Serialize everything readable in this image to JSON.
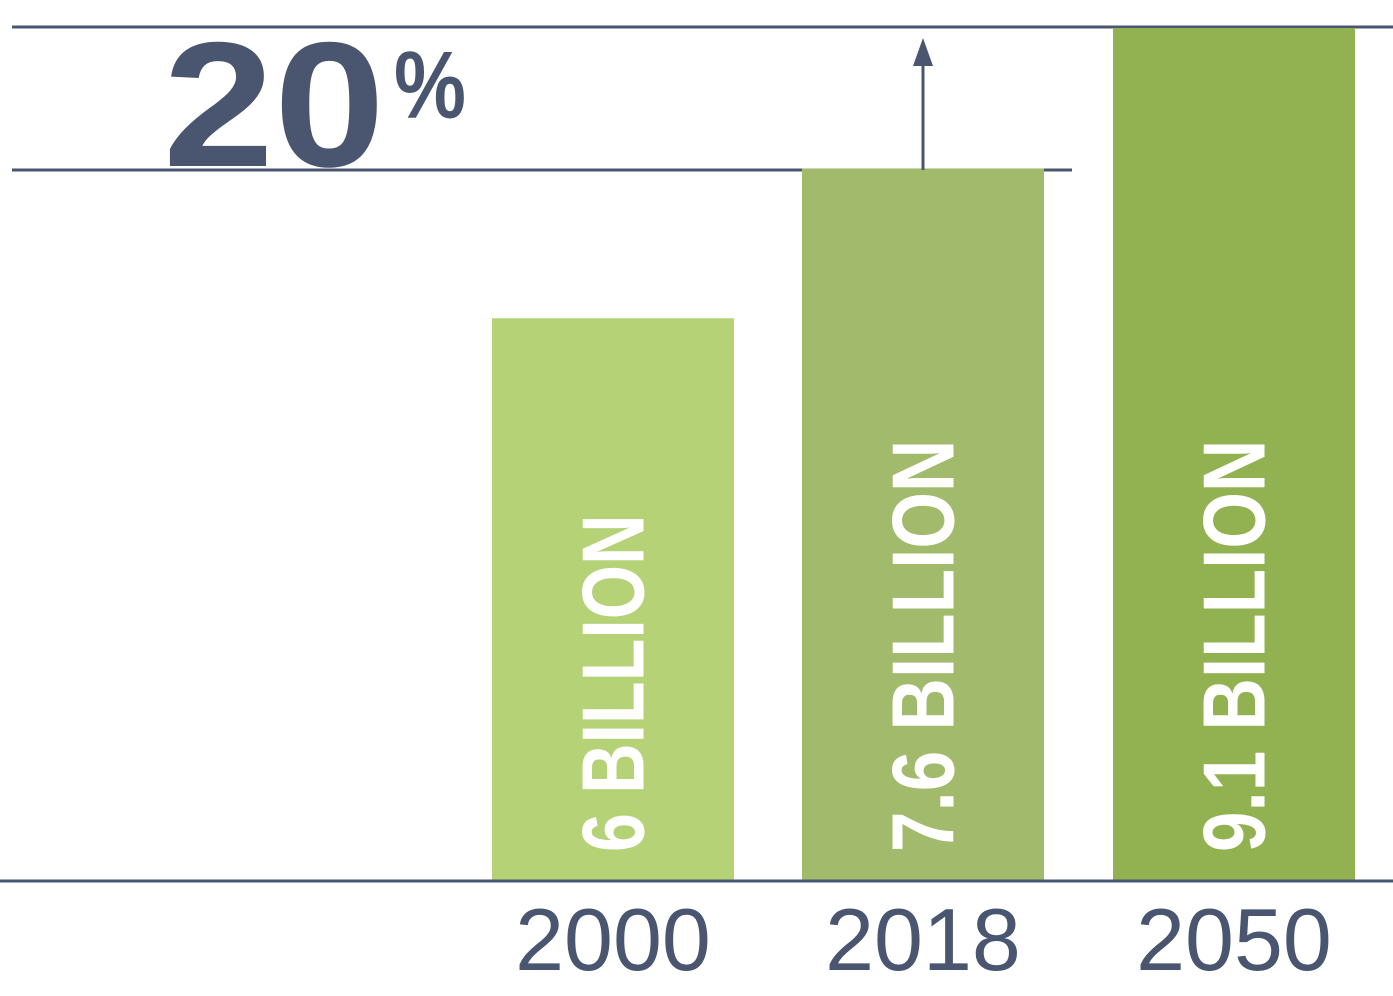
{
  "chart_data": {
    "type": "bar",
    "categories": [
      "2000",
      "2018",
      "2050"
    ],
    "values": [
      6,
      7.6,
      9.1
    ],
    "bar_labels": [
      "6 BILLION",
      "7.6 BILLION",
      "9.1 BILLION"
    ],
    "annotation": {
      "value": "20",
      "unit": "%"
    },
    "ylim": [
      0,
      9.1
    ],
    "grid": false,
    "colors": {
      "bars": [
        "#b5d276",
        "#a1ba6b",
        "#92b252"
      ],
      "lines": "#4a5670",
      "annotation": "#4a5670",
      "tick_labels": "#4a5670",
      "bar_text": "#ffffff"
    }
  }
}
